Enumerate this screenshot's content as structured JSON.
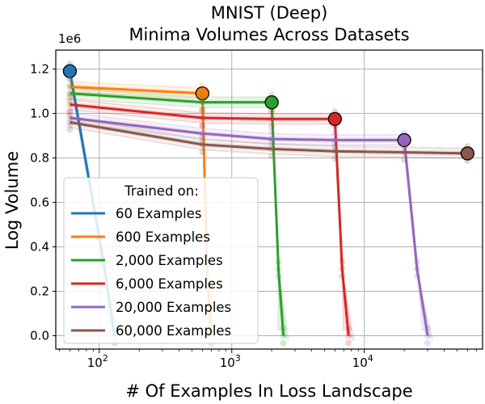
{
  "chart_data": {
    "type": "line",
    "title_line1": "MNIST (Deep)",
    "title_line2": "Minima Volumes Across Datasets",
    "xlabel": "# Of Examples In Loss Landscape",
    "ylabel": "Log Volume",
    "y_scale_label": "1e6",
    "x_scale": "log",
    "xlim": [
      47,
      78000
    ],
    "ylim": [
      -60000,
      1285000
    ],
    "x_ticks": [
      {
        "value": 100,
        "base": "10",
        "exp": "2"
      },
      {
        "value": 1000,
        "base": "10",
        "exp": "3"
      },
      {
        "value": 10000,
        "base": "10",
        "exp": "4"
      }
    ],
    "y_ticks": [
      {
        "value": 0,
        "label": "0.0"
      },
      {
        "value": 200000,
        "label": "0.2"
      },
      {
        "value": 400000,
        "label": "0.4"
      },
      {
        "value": 600000,
        "label": "0.6"
      },
      {
        "value": 800000,
        "label": "0.8"
      },
      {
        "value": 1000000,
        "label": "1.0"
      },
      {
        "value": 1200000,
        "label": "1.2"
      }
    ],
    "legend_title": "Trained on:",
    "legend_position": "lower-left",
    "series": [
      {
        "name": "60 Examples",
        "color": "#1f77b4",
        "marker_x": 60,
        "x": [
          60,
          110,
          130
        ],
        "y": [
          1190000,
          300000,
          0
        ]
      },
      {
        "name": "600 Examples",
        "color": "#ff7f0e",
        "marker_x": 600,
        "x": [
          60,
          600,
          650,
          700
        ],
        "y": [
          1120000,
          1090000,
          300000,
          0
        ]
      },
      {
        "name": "2,000 Examples",
        "color": "#2ca02c",
        "marker_x": 2000,
        "x": [
          60,
          600,
          2000,
          2250,
          2450
        ],
        "y": [
          1090000,
          1050000,
          1050000,
          300000,
          0
        ]
      },
      {
        "name": "6,000 Examples",
        "color": "#d62728",
        "marker_x": 6000,
        "x": [
          60,
          600,
          2000,
          6000,
          6800,
          7600
        ],
        "y": [
          1040000,
          980000,
          975000,
          975000,
          300000,
          0
        ]
      },
      {
        "name": "20,000 Examples",
        "color": "#9467bd",
        "marker_x": 20000,
        "x": [
          60,
          600,
          2000,
          6000,
          20000,
          25000,
          30000
        ],
        "y": [
          980000,
          910000,
          885000,
          880000,
          880000,
          300000,
          0
        ]
      },
      {
        "name": "60,000 Examples",
        "color": "#8c564b",
        "marker_x": 60000,
        "x": [
          60,
          600,
          2000,
          6000,
          20000,
          60000
        ],
        "y": [
          960000,
          860000,
          840000,
          830000,
          825000,
          820000
        ]
      }
    ]
  }
}
